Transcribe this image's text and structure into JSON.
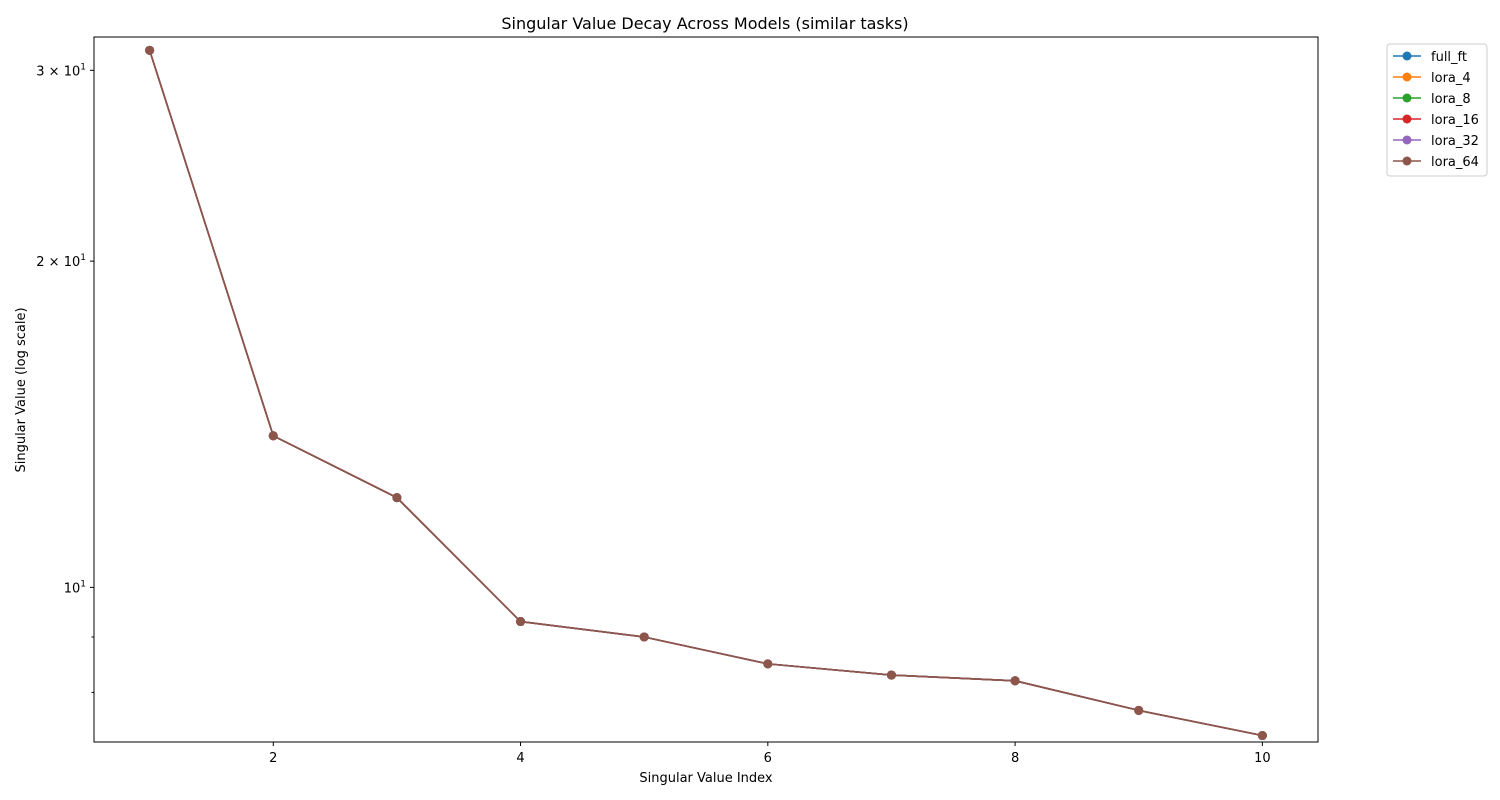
{
  "chart_data": {
    "type": "line",
    "title": "Singular Value Decay Across Models (similar tasks)",
    "xlabel": "Singular Value Index",
    "ylabel": "Singular Value (log scale)",
    "yscale": "log",
    "xlim": [
      0.55,
      10.45
    ],
    "ylim": [
      7.2,
      32.2
    ],
    "xticks": [
      {
        "value": 2,
        "label": "2"
      },
      {
        "value": 4,
        "label": "4"
      },
      {
        "value": 6,
        "label": "6"
      },
      {
        "value": 8,
        "label": "8"
      },
      {
        "value": 10,
        "label": "10"
      }
    ],
    "yticks_major": [
      {
        "value": 10,
        "base": "10",
        "exp": "1",
        "mult": ""
      },
      {
        "value": 20,
        "base": "10",
        "exp": "1",
        "mult": "2 × "
      },
      {
        "value": 30,
        "base": "10",
        "exp": "1",
        "mult": "3 × "
      }
    ],
    "yticks_minor": [
      8,
      9
    ],
    "legend_position": "outside-upper-right",
    "x": [
      1,
      2,
      3,
      4,
      5,
      6,
      7,
      8,
      9,
      10
    ],
    "series": [
      {
        "name": "full_ft",
        "color": "#1f77b4",
        "values": [
          31.3,
          13.8,
          12.1,
          9.3,
          9.0,
          8.5,
          8.3,
          8.2,
          7.7,
          7.3
        ]
      },
      {
        "name": "lora_4",
        "color": "#ff7f0e",
        "values": [
          31.3,
          13.8,
          12.1,
          9.3,
          9.0,
          8.5,
          8.3,
          8.2,
          7.7,
          7.3
        ]
      },
      {
        "name": "lora_8",
        "color": "#2ca02c",
        "values": [
          31.3,
          13.8,
          12.1,
          9.3,
          9.0,
          8.5,
          8.3,
          8.2,
          7.7,
          7.3
        ]
      },
      {
        "name": "lora_16",
        "color": "#d62728",
        "values": [
          31.3,
          13.8,
          12.1,
          9.3,
          9.0,
          8.5,
          8.3,
          8.2,
          7.7,
          7.3
        ]
      },
      {
        "name": "lora_32",
        "color": "#9467bd",
        "values": [
          31.3,
          13.8,
          12.1,
          9.3,
          9.0,
          8.5,
          8.3,
          8.2,
          7.7,
          7.3
        ]
      },
      {
        "name": "lora_64",
        "color": "#8c564b",
        "values": [
          31.3,
          13.8,
          12.1,
          9.3,
          9.0,
          8.5,
          8.3,
          8.2,
          7.7,
          7.3
        ]
      }
    ]
  }
}
